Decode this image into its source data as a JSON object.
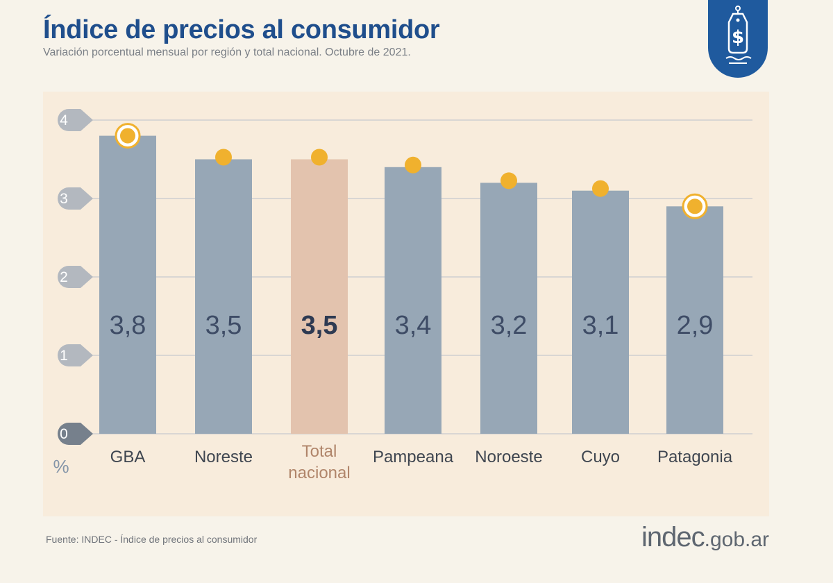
{
  "header": {
    "title": "Índice de precios al consumidor",
    "subtitle": "Variación porcentual mensual por región y total nacional. Octubre de 2021."
  },
  "footer": {
    "source": "Fuente: INDEC - Índice de precios al consumidor",
    "brand_main": "indec",
    "brand_suffix": ".gob.ar"
  },
  "badge": {
    "icon": "price-tag-dollar-icon"
  },
  "colors": {
    "title": "#1f4e8c",
    "bar": "#97a7b6",
    "bar_highlight": "#e3c3ae",
    "marker": "#f0b12e",
    "value_text": "#3e4c66",
    "badge": "#1f5a9e"
  },
  "chart_data": {
    "type": "bar",
    "categories": [
      "GBA",
      "Noreste",
      "Total\nnacional",
      "Pampeana",
      "Noroeste",
      "Cuyo",
      "Patagonia"
    ],
    "values": [
      3.8,
      3.5,
      3.5,
      3.4,
      3.2,
      3.1,
      2.9
    ],
    "value_labels": [
      "3,8",
      "3,5",
      "3,5",
      "3,4",
      "3,2",
      "3,1",
      "2,9"
    ],
    "highlight_index": 2,
    "marker_style": [
      "ring",
      "dot",
      "dot",
      "dot",
      "dot",
      "dot",
      "ring"
    ],
    "ylabel": "%",
    "yticks": [
      0,
      1,
      2,
      3,
      4
    ],
    "ylim": [
      0,
      4
    ],
    "grid": true
  }
}
